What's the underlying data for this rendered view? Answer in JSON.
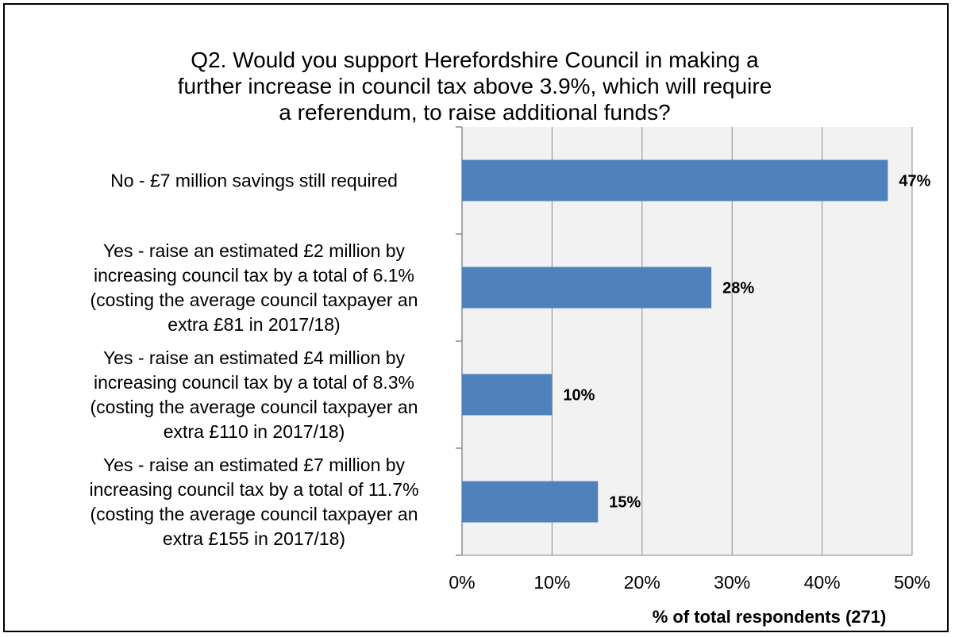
{
  "chart_data": {
    "type": "bar",
    "orientation": "horizontal",
    "title_lines": [
      "Q2. Would you support Herefordshire Council in making a",
      "further increase in council tax above 3.9%, which will require",
      "a referendum, to raise additional funds?"
    ],
    "categories": [
      [
        "No - £7 million savings still required"
      ],
      [
        "Yes - raise an estimated £2 million by",
        "increasing council tax by a total of 6.1%",
        "(costing the average council taxpayer an",
        "extra £81 in 2017/18)"
      ],
      [
        "Yes - raise an estimated £4 million by",
        "increasing council tax by a total of 8.3%",
        "(costing the average council taxpayer an",
        "extra £110 in 2017/18)"
      ],
      [
        "Yes - raise an estimated £7 million by",
        "increasing council tax by a total of 11.7%",
        "(costing the average council taxpayer an",
        "extra £155 in 2017/18)"
      ]
    ],
    "values": [
      47.3,
      27.7,
      10.0,
      15.1
    ],
    "data_labels": [
      "47%",
      "28%",
      "10%",
      "15%"
    ],
    "xlim": [
      0,
      50
    ],
    "xticks": [
      0,
      10,
      20,
      30,
      40,
      50
    ],
    "xtick_labels": [
      "0%",
      "10%",
      "20%",
      "30%",
      "40%",
      "50%"
    ],
    "xlabel": "% of total respondents (271)",
    "ylabel": "",
    "grid": "vertical",
    "legend": "none",
    "colors": {
      "bar": "#4f81bd",
      "plot_background": "#f2f2f2",
      "grid": "#8c8c8c",
      "axis": "#8c8c8c",
      "text": "#000000"
    }
  }
}
